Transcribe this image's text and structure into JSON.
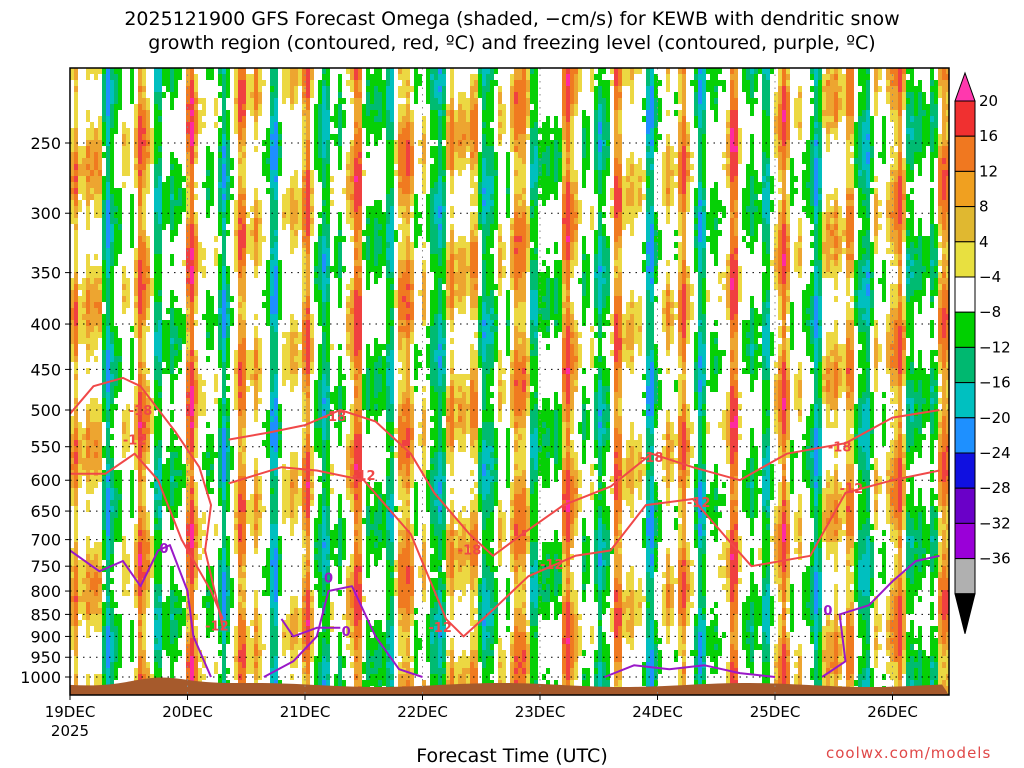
{
  "chart_data": {
    "type": "heatmap",
    "title": "2025121900 GFS Forecast Omega (shaded, −cm/s) for KEWB with dendritic snow",
    "subtitle": "growth region (contoured, red, ºC) and freezing level (contoured, purple, ºC)",
    "xlabel": "Forecast Time (UTC)",
    "ylabel": "",
    "x_ticks": [
      "19DEC",
      "20DEC",
      "21DEC",
      "22DEC",
      "23DEC",
      "24DEC",
      "25DEC",
      "26DEC"
    ],
    "x_year": "2025",
    "y_ticks": [
      250,
      300,
      350,
      400,
      450,
      500,
      550,
      600,
      650,
      700,
      750,
      800,
      850,
      900,
      950,
      1000
    ],
    "y_scale": "log-pressure",
    "ylim": [
      1030,
      200
    ],
    "grid": true,
    "colorbar": {
      "labels": [
        "20",
        "16",
        "12",
        "8",
        "4",
        "−4",
        "−8",
        "−12",
        "−16",
        "−20",
        "−24",
        "−28",
        "−32",
        "−36"
      ],
      "colors": [
        "#ff38ae",
        "#f03030",
        "#f07820",
        "#f0a020",
        "#e0b830",
        "#e8e040",
        "#ffffff",
        "#00d000",
        "#00b870",
        "#00c0c0",
        "#1e90ff",
        "#1010e0",
        "#6a00c8",
        "#9a00d8",
        "#b0b0b0",
        "#000000"
      ]
    },
    "contours": [
      {
        "value": "-18",
        "color": "#f04848"
      },
      {
        "value": "-12",
        "color": "#f04848"
      },
      {
        "value": "0",
        "color": "#9a18c8"
      }
    ],
    "contour_labels": [
      {
        "text": "-18",
        "x": 0.6,
        "p": 500
      },
      {
        "text": "-12",
        "x": 0.55,
        "p": 540
      },
      {
        "text": "-18",
        "x": 2.25,
        "p": 508
      },
      {
        "text": "-12",
        "x": 2.5,
        "p": 592
      },
      {
        "text": "-12",
        "x": 1.25,
        "p": 875
      },
      {
        "text": "-18",
        "x": 3.4,
        "p": 718
      },
      {
        "text": "-12",
        "x": 3.15,
        "p": 878
      },
      {
        "text": "-12",
        "x": 4.1,
        "p": 746
      },
      {
        "text": "-18",
        "x": 4.95,
        "p": 565
      },
      {
        "text": "-12",
        "x": 5.35,
        "p": 635
      },
      {
        "text": "-18",
        "x": 6.55,
        "p": 550
      },
      {
        "text": "-12",
        "x": 6.65,
        "p": 612
      },
      {
        "text": "0",
        "x": 0.8,
        "p": 715
      },
      {
        "text": "0",
        "x": 2.2,
        "p": 772
      },
      {
        "text": "0",
        "x": 2.35,
        "p": 888
      },
      {
        "text": "0",
        "x": 6.45,
        "p": 840
      }
    ]
  },
  "credit": "coolwx.com/models"
}
